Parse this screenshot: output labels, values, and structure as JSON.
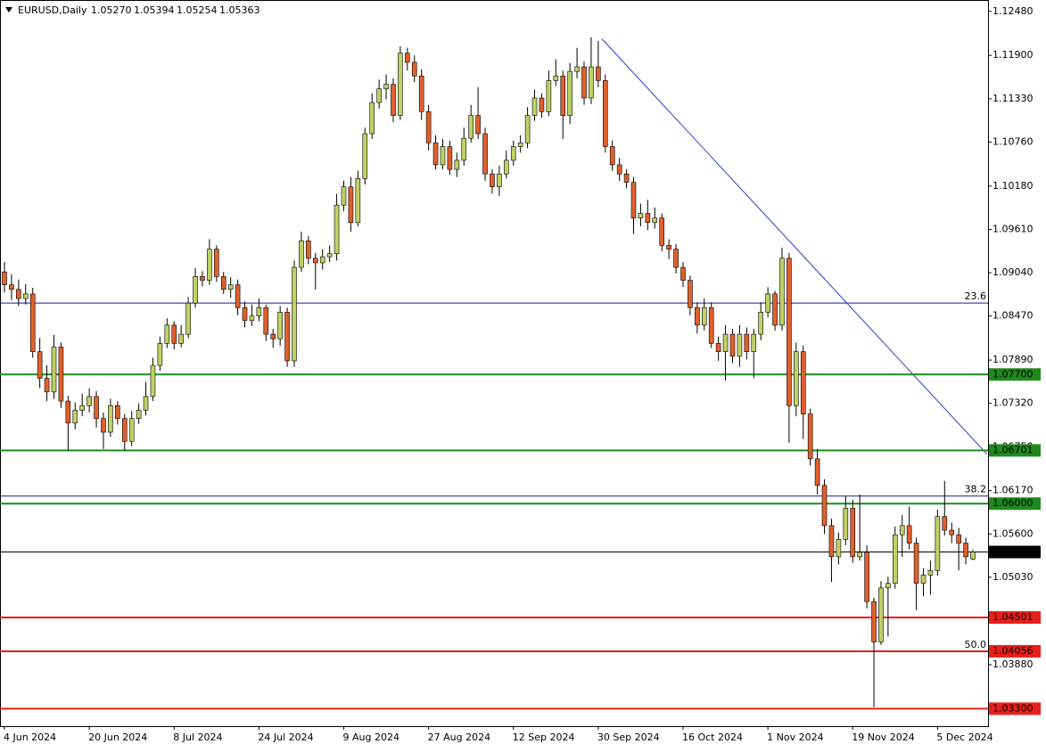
{
  "chart_data": {
    "type": "candlestick",
    "title": "EURUSD,Daily",
    "header_values": [
      "1.05270",
      "1.05394",
      "1.05254",
      "1.05363"
    ],
    "categories": [
      "4 Jun 2024",
      null,
      null,
      null,
      null,
      null,
      null,
      null,
      null,
      null,
      null,
      null,
      "20 Jun 2024",
      null,
      null,
      null,
      null,
      null,
      null,
      null,
      null,
      null,
      null,
      null,
      "8 Jul 2024",
      null,
      null,
      null,
      null,
      null,
      null,
      null,
      null,
      null,
      null,
      null,
      "24 Jul 2024",
      null,
      null,
      null,
      null,
      null,
      null,
      null,
      null,
      null,
      null,
      null,
      "9 Aug 2024",
      null,
      null,
      null,
      null,
      null,
      null,
      null,
      null,
      null,
      null,
      null,
      "27 Aug 2024",
      null,
      null,
      null,
      null,
      null,
      null,
      null,
      null,
      null,
      null,
      null,
      "12 Sep 2024",
      null,
      null,
      null,
      null,
      null,
      null,
      null,
      null,
      null,
      null,
      null,
      "30 Sep 2024",
      null,
      null,
      null,
      null,
      null,
      null,
      null,
      null,
      null,
      null,
      null,
      "16 Oct 2024",
      null,
      null,
      null,
      null,
      null,
      null,
      null,
      null,
      null,
      null,
      null,
      "1 Nov 2024",
      null,
      null,
      null,
      null,
      null,
      null,
      null,
      null,
      null,
      null,
      null,
      "19 Nov 2024",
      null,
      null,
      null,
      null,
      null,
      null,
      null,
      null,
      null,
      null,
      null,
      "5 Dec 2024",
      null,
      null,
      null,
      null,
      null
    ],
    "open": [
      1.0905,
      1.0888,
      1.0882,
      1.087,
      1.0876,
      1.08,
      1.0765,
      1.0747,
      1.0806,
      1.0735,
      1.0706,
      1.0723,
      1.0729,
      1.0741,
      1.0712,
      1.0694,
      1.0729,
      1.0712,
      1.0682,
      1.0712,
      1.0723,
      1.0741,
      1.0782,
      1.0811,
      1.0835,
      1.0811,
      1.0823,
      1.0864,
      1.0899,
      1.0894,
      1.0935,
      1.0899,
      1.0882,
      1.0888,
      1.0858,
      1.0841,
      1.0847,
      1.0858,
      1.0823,
      1.0817,
      1.0852,
      1.0788,
      1.0911,
      1.0946,
      1.0923,
      1.0917,
      1.0925,
      1.0929,
      1.0993,
      1.1017,
      1.097,
      1.1028,
      1.1087,
      1.1128,
      1.1146,
      1.1152,
      1.1111,
      1.1193,
      1.1181,
      1.1163,
      1.1116,
      1.1075,
      1.1046,
      1.107,
      1.104,
      1.1052,
      1.1081,
      1.1111,
      1.1087,
      1.1034,
      1.1017,
      1.1034,
      1.1052,
      1.107,
      1.1075,
      1.1111,
      1.1134,
      1.1116,
      1.1157,
      1.1163,
      1.1111,
      1.1169,
      1.1175,
      1.1134,
      1.1175,
      1.1157,
      1.107,
      1.1046,
      1.1034,
      1.1023,
      1.0976,
      1.0982,
      1.097,
      1.0976,
      1.094,
      1.0935,
      1.0911,
      1.0894,
      1.0858,
      1.0835,
      1.0858,
      1.0811,
      1.08,
      1.0823,
      1.0794,
      1.0823,
      1.08,
      1.0823,
      1.0852,
      1.0876,
      1.0835,
      1.0923,
      1.0729,
      1.08,
      1.0718,
      1.0659,
      1.0624,
      1.0571,
      1.053,
      1.0553,
      1.0594,
      1.053,
      1.0536,
      1.0471,
      1.0418,
      1.0489,
      1.0495,
      1.0559,
      1.0571,
      1.0548,
      1.0495,
      1.0506,
      1.0512,
      1.0583,
      1.0565,
      1.0559,
      1.0548,
      1.0527
    ],
    "high": [
      1.0918,
      1.0902,
      1.0895,
      1.0889,
      1.0884,
      1.0818,
      1.0782,
      1.0822,
      1.0812,
      1.0742,
      1.0733,
      1.0745,
      1.0752,
      1.0748,
      1.072,
      1.0738,
      1.0735,
      1.0718,
      1.0722,
      1.0732,
      1.076,
      1.0792,
      1.082,
      1.0844,
      1.084,
      1.0835,
      1.0872,
      1.091,
      1.0906,
      1.0948,
      1.094,
      1.0905,
      1.0898,
      1.0895,
      1.0866,
      1.0862,
      1.087,
      1.0862,
      1.083,
      1.086,
      1.0858,
      1.092,
      1.0958,
      1.0952,
      1.093,
      1.0935,
      1.094,
      1.1008,
      1.1025,
      1.103,
      1.1038,
      1.1095,
      1.114,
      1.1158,
      1.1165,
      1.116,
      1.1202,
      1.12,
      1.119,
      1.1172,
      1.1125,
      1.1085,
      1.108,
      1.1078,
      1.1062,
      1.1095,
      1.1125,
      1.1148,
      1.1095,
      1.104,
      1.1045,
      1.1065,
      1.1078,
      1.1085,
      1.1122,
      1.1145,
      1.114,
      1.117,
      1.1185,
      1.117,
      1.118,
      1.12,
      1.1182,
      1.1214,
      1.1209,
      1.1165,
      1.1078,
      1.1055,
      1.104,
      1.103,
      1.0995,
      1.1,
      1.099,
      1.0982,
      1.0948,
      1.0942,
      1.0918,
      1.09,
      1.0865,
      1.087,
      1.0865,
      1.082,
      1.0835,
      1.083,
      1.0835,
      1.0832,
      1.083,
      1.0865,
      1.0885,
      1.088,
      1.0937,
      1.093,
      1.0812,
      1.0808,
      1.0725,
      1.0672,
      1.0632,
      1.058,
      1.0562,
      1.061,
      1.0605,
      1.0612,
      1.0545,
      1.0476,
      1.0498,
      1.0504,
      1.057,
      1.0585,
      1.0596,
      1.0555,
      1.0515,
      1.0525,
      1.0592,
      1.063,
      1.0575,
      1.0568,
      1.0555,
      1.05394
    ],
    "low": [
      1.0878,
      1.0868,
      1.086,
      1.0862,
      1.0792,
      1.0752,
      1.0735,
      1.0738,
      1.0726,
      1.067,
      1.0698,
      1.0715,
      1.072,
      1.07,
      1.0672,
      1.0688,
      1.0704,
      1.067,
      1.0676,
      1.0705,
      1.0716,
      1.0735,
      1.0775,
      1.0805,
      1.0803,
      1.0806,
      1.0818,
      1.0858,
      1.0886,
      1.0888,
      1.0892,
      1.0876,
      1.0871,
      1.0848,
      1.0832,
      1.0834,
      1.084,
      1.0814,
      1.0805,
      1.0808,
      1.078,
      1.078,
      1.0905,
      1.0915,
      1.0882,
      1.0908,
      1.0918,
      1.092,
      1.0985,
      1.0958,
      1.0965,
      1.102,
      1.108,
      1.112,
      1.1132,
      1.1102,
      1.1105,
      1.117,
      1.1155,
      1.1105,
      1.1065,
      1.104,
      1.104,
      1.1033,
      1.103,
      1.1045,
      1.1075,
      1.108,
      1.1025,
      1.1008,
      1.1005,
      1.1028,
      1.1045,
      1.1062,
      1.1068,
      1.1104,
      1.1108,
      1.111,
      1.115,
      1.108,
      1.11,
      1.116,
      1.1125,
      1.1126,
      1.1148,
      1.1062,
      1.1038,
      1.1025,
      1.1015,
      1.0955,
      1.0965,
      1.096,
      1.0962,
      1.0932,
      1.0922,
      1.0903,
      1.0885,
      1.0848,
      1.0824,
      1.0828,
      1.0805,
      1.0788,
      1.0762,
      1.0785,
      1.078,
      1.079,
      1.0765,
      1.0815,
      1.0845,
      1.0828,
      1.0828,
      1.068,
      1.0715,
      1.0685,
      1.065,
      1.0612,
      1.056,
      1.0497,
      1.052,
      1.0545,
      1.0522,
      1.0525,
      1.0462,
      1.0332,
      1.0414,
      1.0425,
      1.0488,
      1.053,
      1.054,
      1.046,
      1.0478,
      1.048,
      1.0505,
      1.0558,
      1.0548,
      1.0512,
      1.052,
      1.05254
    ],
    "close": [
      1.0888,
      1.0882,
      1.087,
      1.0876,
      1.08,
      1.0765,
      1.0747,
      1.0806,
      1.0735,
      1.0706,
      1.0723,
      1.0729,
      1.0741,
      1.0712,
      1.0694,
      1.0729,
      1.0712,
      1.0682,
      1.0712,
      1.0723,
      1.0741,
      1.0782,
      1.0811,
      1.0835,
      1.0811,
      1.0823,
      1.0864,
      1.0899,
      1.0894,
      1.0935,
      1.0899,
      1.0882,
      1.0888,
      1.0858,
      1.0841,
      1.0847,
      1.0858,
      1.0823,
      1.0817,
      1.0852,
      1.0788,
      1.0911,
      1.0946,
      1.0923,
      1.0917,
      1.0925,
      1.0929,
      1.0993,
      1.1017,
      1.097,
      1.1028,
      1.1087,
      1.1128,
      1.1146,
      1.1152,
      1.1111,
      1.1193,
      1.1181,
      1.1163,
      1.1116,
      1.1075,
      1.1046,
      1.107,
      1.104,
      1.1052,
      1.1081,
      1.1111,
      1.1087,
      1.1034,
      1.1017,
      1.1034,
      1.1052,
      1.107,
      1.1075,
      1.1111,
      1.1134,
      1.1116,
      1.1157,
      1.1163,
      1.1111,
      1.1169,
      1.1175,
      1.1134,
      1.1175,
      1.1157,
      1.107,
      1.1046,
      1.1034,
      1.1023,
      1.0976,
      1.0982,
      1.097,
      1.0976,
      1.094,
      1.0935,
      1.0911,
      1.0894,
      1.0858,
      1.0835,
      1.0858,
      1.0811,
      1.08,
      1.0823,
      1.0794,
      1.0823,
      1.08,
      1.0823,
      1.0852,
      1.0876,
      1.0835,
      1.0923,
      1.0729,
      1.08,
      1.0718,
      1.0659,
      1.0624,
      1.0571,
      1.053,
      1.0553,
      1.0594,
      1.053,
      1.0536,
      1.0471,
      1.0418,
      1.0489,
      1.0495,
      1.0559,
      1.0571,
      1.0548,
      1.0495,
      1.0506,
      1.0512,
      1.0583,
      1.0565,
      1.0559,
      1.0548,
      1.053,
      1.05363
    ],
    "up_color": "#bfd165",
    "down_color": "#e0602c",
    "ylim": [
      1.0307,
      1.1263
    ],
    "yticks": [
      {
        "value": 1.1248,
        "label": "1.12480"
      },
      {
        "value": 1.119,
        "label": "1.11900"
      },
      {
        "value": 1.1133,
        "label": "1.11330"
      },
      {
        "value": 1.1076,
        "label": "1.10760"
      },
      {
        "value": 1.1018,
        "label": "1.10180"
      },
      {
        "value": 1.0961,
        "label": "1.09610"
      },
      {
        "value": 1.0904,
        "label": "1.09040"
      },
      {
        "value": 1.0847,
        "label": "1.08470"
      },
      {
        "value": 1.0789,
        "label": "1.07890"
      },
      {
        "value": 1.0732,
        "label": "1.07320"
      },
      {
        "value": 1.0675,
        "label": "1.06750"
      },
      {
        "value": 1.0617,
        "label": "1.06170"
      },
      {
        "value": 1.056,
        "label": "1.05600"
      },
      {
        "value": 1.0503,
        "label": "1.05030"
      },
      {
        "value": 1.0388,
        "label": "1.03880"
      }
    ],
    "levels": [
      {
        "value": 1.077,
        "label": "1.07700",
        "color": "#1e8a1e"
      },
      {
        "value": 1.06701,
        "label": "1.06701",
        "color": "#1e8a1e"
      },
      {
        "value": 1.06,
        "label": "1.06000",
        "color": "#1e8a1e"
      },
      {
        "value": 1.04501,
        "label": "1.04501",
        "color": "#e8201c"
      },
      {
        "value": 1.04056,
        "label": "1.04056",
        "color": "#e8201c"
      },
      {
        "value": 1.033,
        "label": "1.03300",
        "color": "#e8201c"
      },
      {
        "value": 1.05363,
        "label": "1.05363",
        "color": "#000000"
      }
    ],
    "fib_levels": [
      {
        "value": 1.0864,
        "label": "23.6"
      },
      {
        "value": 1.061,
        "label": "38.2"
      },
      {
        "value": 1.04056,
        "label": "50.0"
      }
    ],
    "fib_color": "#1a1a8c",
    "trendline": {
      "x": [
        84.5,
        139
      ],
      "values": [
        1.1212,
        1.0665
      ],
      "color": "#2b3fc6"
    }
  }
}
